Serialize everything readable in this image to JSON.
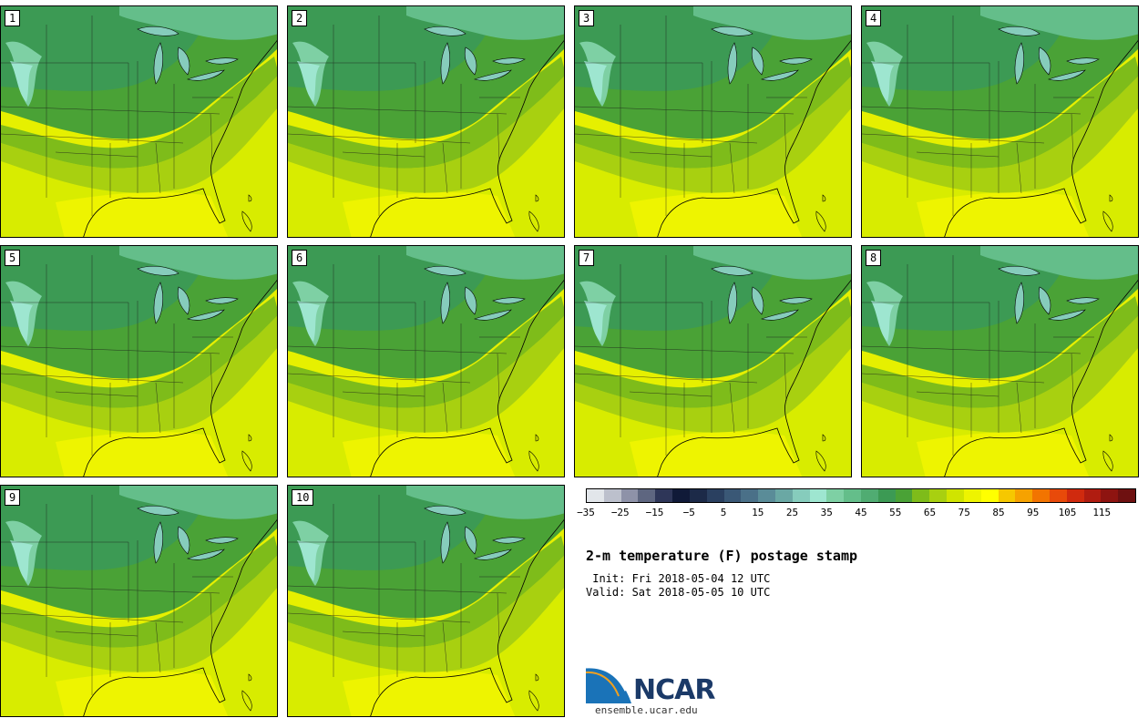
{
  "title": "2-m temperature (F) postage stamp",
  "init": " Init: Fri 2018-05-04 12 UTC",
  "valid": "Valid: Sat 2018-05-05 10 UTC",
  "logo": {
    "name": "NCAR",
    "url": "ensemble.ucar.edu"
  },
  "panels": [
    "1",
    "2",
    "3",
    "4",
    "5",
    "6",
    "7",
    "8",
    "9",
    "10"
  ],
  "colorbar": {
    "ticks": [
      "−35",
      "−25",
      "−15",
      "−5",
      "5",
      "15",
      "25",
      "35",
      "45",
      "55",
      "65",
      "75",
      "85",
      "95",
      "105",
      "115"
    ],
    "colors": [
      "#e2e6ea",
      "#bcc0cc",
      "#8e92a8",
      "#5e6680",
      "#2e3658",
      "#101a38",
      "#1c2a48",
      "#2a4060",
      "#3a5876",
      "#4a7088",
      "#5a8c98",
      "#6aa8a4",
      "#86ccbc",
      "#9ee6d0",
      "#7ed0a4",
      "#64be8a",
      "#50ac72",
      "#3c9a54",
      "#4aa236",
      "#7ebc1a",
      "#a8d010",
      "#d0e400",
      "#eef400",
      "#ffff00",
      "#f6c800",
      "#f6a200",
      "#f27400",
      "#e84a0a",
      "#d02a0e",
      "#b01c10",
      "#8e1410",
      "#6e1010"
    ]
  }
}
